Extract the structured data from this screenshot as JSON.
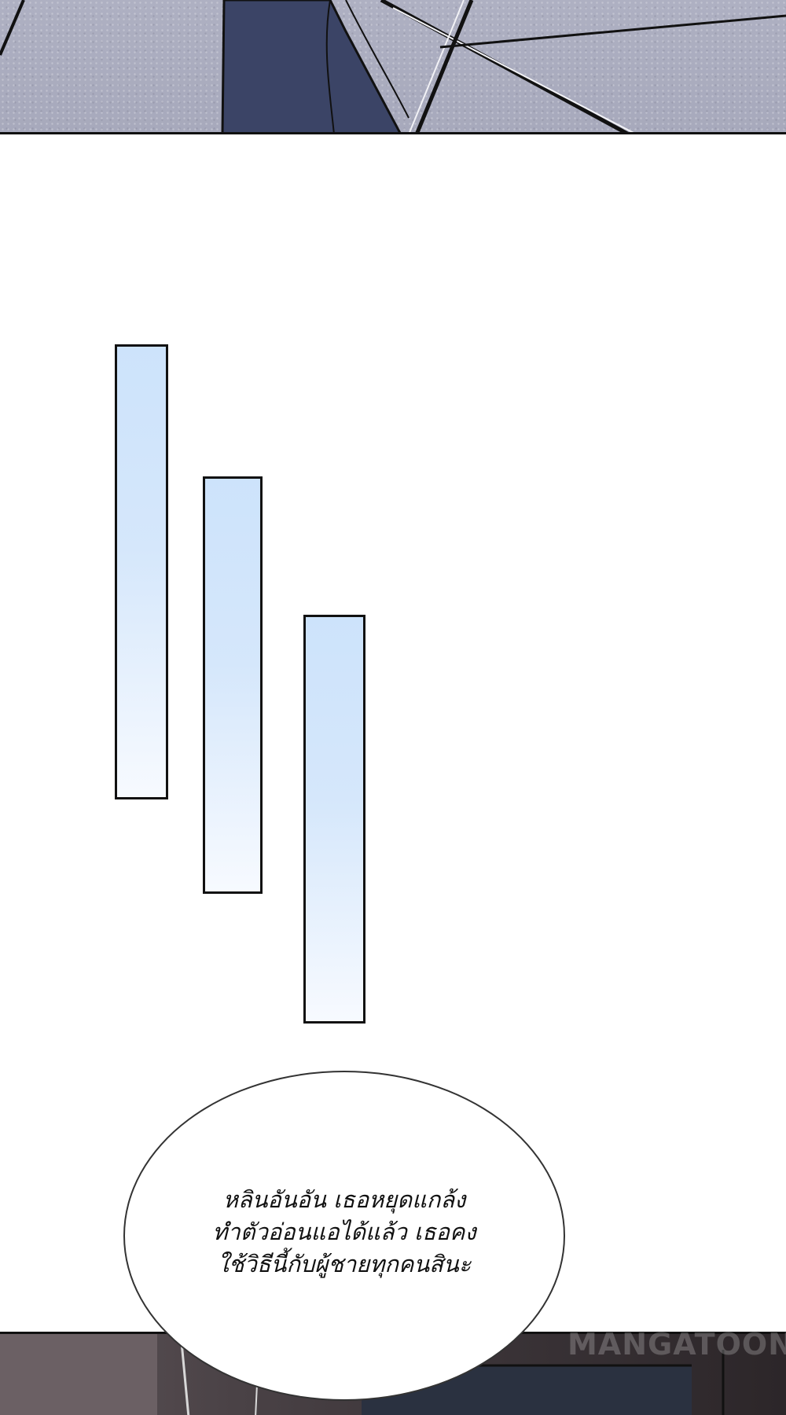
{
  "speech_bubble": {
    "lines": [
      "หลินอันอัน เธอหยุดแกล้ง",
      "ทำตัวอ่อนแอได้แล้ว เธอคง",
      "ใช้วิธีนี้กับผู้ชายทุกคนสินะ"
    ]
  },
  "watermark": {
    "text": "MANGATOON"
  },
  "colors": {
    "bar_top": "#cde3fb",
    "bar_bottom": "#f7faff",
    "outline": "#111111",
    "floor": "#aeb0c2"
  }
}
